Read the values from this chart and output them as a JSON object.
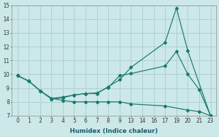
{
  "xlabel": "Humidex (Indice chaleur)",
  "bg_color": "#cce8e8",
  "grid_color": "#add0d0",
  "line_color": "#1a7a6e",
  "ylim": [
    7,
    15
  ],
  "yticks": [
    7,
    8,
    9,
    10,
    11,
    12,
    13,
    14,
    15
  ],
  "xtick_labels": [
    "0",
    "1",
    "2",
    "3",
    "4",
    "5",
    "6",
    "7",
    "8",
    "9",
    "13",
    "14",
    "16",
    "17",
    "19",
    "20",
    "21",
    "23"
  ],
  "series1_xi": [
    0,
    1,
    2,
    3,
    4,
    5,
    6,
    7,
    8,
    9,
    10,
    13,
    14,
    15,
    17
  ],
  "series1_y": [
    9.9,
    9.5,
    8.8,
    8.2,
    8.3,
    8.5,
    8.6,
    8.6,
    9.1,
    9.6,
    10.5,
    12.3,
    14.8,
    11.7,
    7.0
  ],
  "series2_xi": [
    0,
    1,
    2,
    3,
    4,
    5,
    6,
    7,
    8,
    9,
    10,
    13,
    14,
    15,
    16,
    17
  ],
  "series2_y": [
    9.9,
    9.5,
    8.8,
    8.25,
    8.35,
    8.5,
    8.6,
    8.65,
    9.05,
    9.9,
    10.05,
    10.6,
    11.65,
    10.0,
    8.9,
    7.0
  ],
  "series3_xi": [
    0,
    1,
    2,
    3,
    4,
    5,
    6,
    7,
    8,
    9,
    10,
    13,
    15,
    16,
    17
  ],
  "series3_y": [
    9.9,
    9.5,
    8.8,
    8.25,
    8.1,
    8.0,
    8.0,
    8.0,
    8.0,
    8.0,
    7.85,
    7.7,
    7.4,
    7.3,
    7.0
  ]
}
